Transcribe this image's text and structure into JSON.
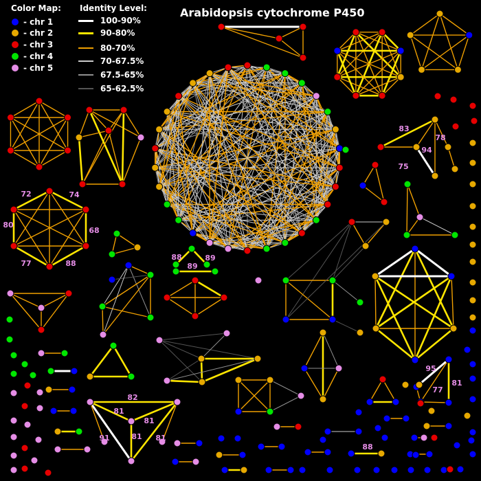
{
  "title": "Arabidopsis cytochrome P450",
  "color_map": {
    "title": "Color Map:",
    "items": [
      {
        "label": "- chr 1",
        "color": "#0000ff"
      },
      {
        "label": "- chr 2",
        "color": "#e6a800"
      },
      {
        "label": "- chr 3",
        "color": "#e60000"
      },
      {
        "label": "- chr 4",
        "color": "#00e600"
      },
      {
        "label": "- chr 5",
        "color": "#e58de6"
      }
    ]
  },
  "identity_level": {
    "title": "Identity Level:",
    "items": [
      {
        "label": "100-90%",
        "color": "#ffffff",
        "width": 3
      },
      {
        "label": "90-80%",
        "color": "#ffe600",
        "width": 3
      },
      {
        "label": "80-70%",
        "color": "#f0a000",
        "width": 2
      },
      {
        "label": "70-67.5%",
        "color": "#cccccc",
        "width": 1.5
      },
      {
        "label": "67.5-65%",
        "color": "#909090",
        "width": 1.5
      },
      {
        "label": "65-62.5%",
        "color": "#555555",
        "width": 1.5
      }
    ]
  },
  "edge_labels": [
    "72",
    "74",
    "80",
    "68",
    "77",
    "88",
    "83",
    "78",
    "94",
    "75",
    "88",
    "89",
    "89",
    "82",
    "81",
    "81",
    "91",
    "81",
    "81",
    "95",
    "77",
    "81",
    "88"
  ]
}
